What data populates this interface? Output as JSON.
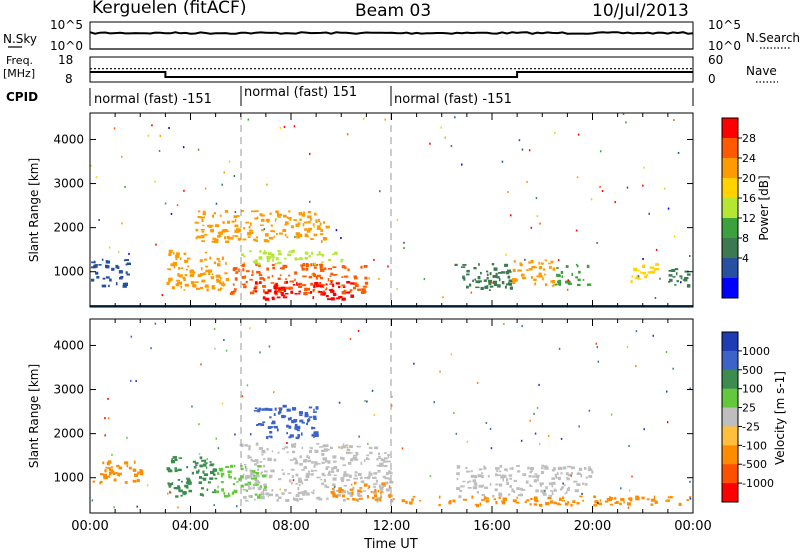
{
  "header": {
    "station": "Kerguelen (fitACF)",
    "beam": "Beam 03",
    "date": "10/Jul/2013"
  },
  "noise_panel": {
    "left_label": "N.Sky",
    "left_ticks": [
      "10^5",
      "10^0"
    ],
    "right_label": "N.Search",
    "right_ticks": [
      "10^5",
      "10^0"
    ]
  },
  "freq_panel": {
    "left_label_1": "Freq.",
    "left_label_2": "[MHz]",
    "left_ticks": [
      "18",
      "8"
    ],
    "right_label": "Nave",
    "right_ticks": [
      "60",
      "0"
    ],
    "freq_steps": [
      {
        "t0": 0,
        "t1": 3.0,
        "freq": 12
      },
      {
        "t0": 3.0,
        "t1": 17.0,
        "freq": 10
      },
      {
        "t0": 17.0,
        "t1": 24.0,
        "freq": 12
      }
    ],
    "nave_level": 32
  },
  "cpid": {
    "label": "CPID",
    "segments": [
      {
        "t0": 0,
        "t1": 6.0,
        "text": "normal (fast) -151"
      },
      {
        "t0": 6.0,
        "t1": 12.0,
        "text": "normal (fast) 151"
      },
      {
        "t0": 12.0,
        "t1": 24.0,
        "text": "normal (fast) -151"
      }
    ]
  },
  "chart_data": [
    {
      "type": "heatmap",
      "name": "power",
      "ylabel": "Slant Range [km]",
      "yticks": [
        "4000",
        "3000",
        "2000",
        "1000"
      ],
      "ylim": [
        200,
        4600
      ],
      "xlim": [
        0,
        24
      ],
      "colorbar": {
        "label": "Power [dB]",
        "ticks": [
          "28",
          "24",
          "20",
          "16",
          "12",
          "8",
          "4"
        ],
        "colors": [
          "#ff0000",
          "#ff5a00",
          "#ff9a00",
          "#ffd200",
          "#b4e632",
          "#3ca03c",
          "#3c7850",
          "#2850a0",
          "#0000ff"
        ]
      },
      "regions": [
        {
          "t0": 0.0,
          "t1": 1.5,
          "r0": 700,
          "r1": 1300,
          "c": "#2850a0"
        },
        {
          "t0": 3.0,
          "t1": 5.5,
          "r0": 600,
          "r1": 1500,
          "c": "#ff9a00"
        },
        {
          "t0": 5.5,
          "t1": 11.0,
          "r0": 500,
          "r1": 1200,
          "c": "#ff5a00"
        },
        {
          "t0": 6.5,
          "t1": 10.5,
          "r0": 400,
          "r1": 800,
          "c": "#ff0000"
        },
        {
          "t0": 4.0,
          "t1": 9.5,
          "r0": 1700,
          "r1": 2400,
          "c": "#ff9a00"
        },
        {
          "t0": 6.0,
          "t1": 10.0,
          "r0": 1200,
          "r1": 1500,
          "c": "#b4e632"
        },
        {
          "t0": 14.5,
          "t1": 16.8,
          "r0": 600,
          "r1": 1200,
          "c": "#3c7850"
        },
        {
          "t0": 16.8,
          "t1": 18.5,
          "r0": 700,
          "r1": 1300,
          "c": "#ff9a00"
        },
        {
          "t0": 18.5,
          "t1": 19.8,
          "r0": 700,
          "r1": 1200,
          "c": "#3ca03c"
        },
        {
          "t0": 21.5,
          "t1": 22.5,
          "r0": 800,
          "r1": 1200,
          "c": "#ffd200"
        },
        {
          "t0": 23.0,
          "t1": 23.8,
          "r0": 700,
          "r1": 1100,
          "c": "#3c7850"
        }
      ]
    },
    {
      "type": "heatmap",
      "name": "velocity",
      "ylabel": "Slant Range [km]",
      "yticks": [
        "4000",
        "3000",
        "2000",
        "1000"
      ],
      "ylim": [
        200,
        4600
      ],
      "xlim": [
        0,
        24
      ],
      "colorbar": {
        "label": "Velocity [m s-1]",
        "ticks": [
          "1000",
          "500",
          "100",
          "25",
          "-25",
          "-100",
          "-500",
          "-1000"
        ],
        "colors": [
          "#1e3cb4",
          "#3c64c8",
          "#3c8c50",
          "#64c83c",
          "#bebebe",
          "#ffbe3c",
          "#ff8c00",
          "#ff5000",
          "#ff0000"
        ]
      },
      "regions": [
        {
          "t0": 0.0,
          "t1": 2.0,
          "r0": 900,
          "r1": 1400,
          "c": "#ff8c00"
        },
        {
          "t0": 3.0,
          "t1": 5.0,
          "r0": 600,
          "r1": 1500,
          "c": "#3c8c50"
        },
        {
          "t0": 5.0,
          "t1": 7.0,
          "r0": 600,
          "r1": 1300,
          "c": "#64c83c"
        },
        {
          "t0": 6.0,
          "t1": 12.0,
          "r0": 500,
          "r1": 1800,
          "c": "#bebebe"
        },
        {
          "t0": 6.5,
          "t1": 9.0,
          "r0": 1900,
          "r1": 2700,
          "c": "#3c64c8"
        },
        {
          "t0": 9.5,
          "t1": 12.0,
          "r0": 500,
          "r1": 900,
          "c": "#ff8c00"
        },
        {
          "t0": 14.5,
          "t1": 20.0,
          "r0": 600,
          "r1": 1300,
          "c": "#bebebe"
        },
        {
          "t0": 12.0,
          "t1": 24.0,
          "r0": 400,
          "r1": 600,
          "c": "#ff8c00"
        }
      ]
    }
  ],
  "xaxis": {
    "ticks": [
      "00:00",
      "04:00",
      "08:00",
      "12:00",
      "16:00",
      "20:00",
      "00:00"
    ],
    "label": "Time UT"
  }
}
